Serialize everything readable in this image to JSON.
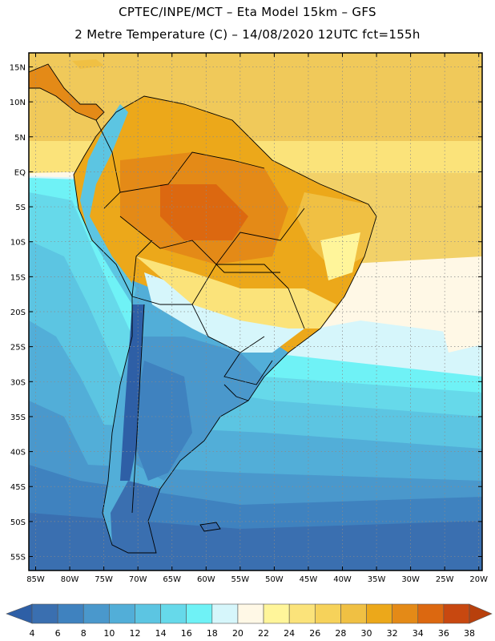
{
  "title": {
    "line1": "CPTEC/INPE/MCT –  Eta Model 15km – GFS",
    "line2": "2 Metre Temperature (C) – 14/08/2020 12UTC fct=155h"
  },
  "map": {
    "lat_labels": [
      "15N",
      "10N",
      "5N",
      "EQ",
      "5S",
      "10S",
      "15S",
      "20S",
      "25S",
      "30S",
      "35S",
      "40S",
      "45S",
      "50S",
      "55S"
    ],
    "lon_labels": [
      "85W",
      "80W",
      "75W",
      "70W",
      "65W",
      "60W",
      "55W",
      "50W",
      "45W",
      "40W",
      "35W",
      "30W",
      "25W",
      "20W"
    ],
    "lat_values": [
      15,
      10,
      5,
      0,
      -5,
      -10,
      -15,
      -20,
      -25,
      -30,
      -35,
      -40,
      -45,
      -50,
      -55
    ],
    "lon_values": [
      -85,
      -80,
      -75,
      -70,
      -65,
      -60,
      -55,
      -50,
      -45,
      -40,
      -35,
      -30,
      -25,
      -20
    ],
    "extent": {
      "lon_min": -86,
      "lon_max": -19.5,
      "lat_min": -57,
      "lat_max": 17
    }
  },
  "colorbar": {
    "labels": [
      "4",
      "6",
      "8",
      "10",
      "12",
      "14",
      "16",
      "18",
      "20",
      "22",
      "24",
      "26",
      "28",
      "30",
      "32",
      "34",
      "36",
      "38"
    ],
    "colors": [
      "#3a6fb0",
      "#3f82bf",
      "#4a98cc",
      "#52aed8",
      "#5cc5e2",
      "#66d9ea",
      "#6ff2f6",
      "#d6f6fb",
      "#fff8e6",
      "#fff59a",
      "#fbe37a",
      "#f6d25a",
      "#f0c043",
      "#eca81a",
      "#e48a17",
      "#dc6810",
      "#c84810"
    ],
    "low_color": "#2e5fa6",
    "high_color": "#b8400c"
  }
}
